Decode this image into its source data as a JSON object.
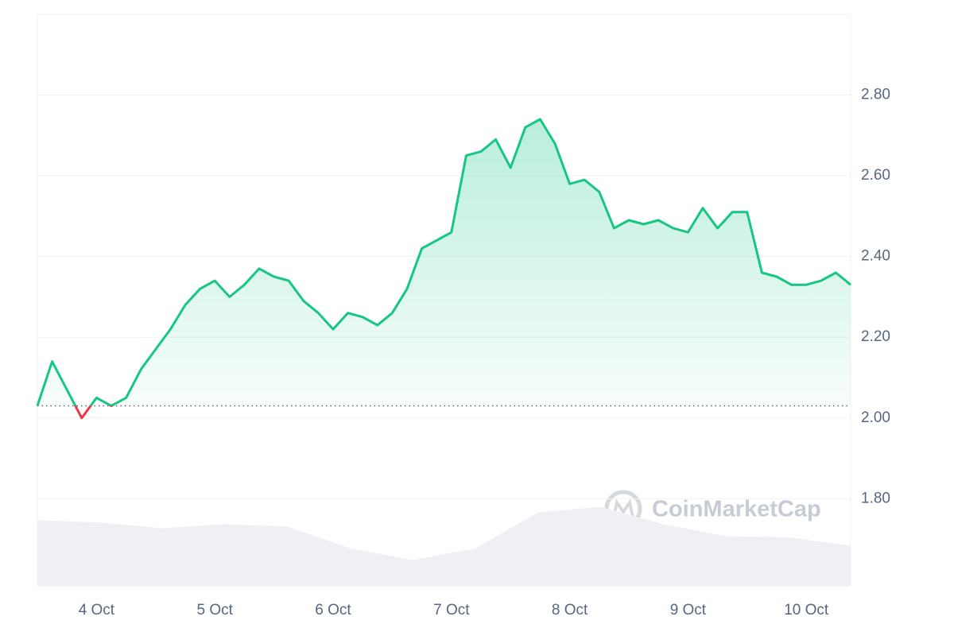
{
  "chart_data": {
    "type": "line",
    "categories": [
      null,
      null,
      null,
      null,
      "4 Oct",
      null,
      null,
      null,
      null,
      null,
      null,
      null,
      "5 Oct",
      null,
      null,
      null,
      null,
      null,
      null,
      null,
      "6 Oct",
      null,
      null,
      null,
      null,
      null,
      null,
      null,
      "7 Oct",
      null,
      null,
      null,
      null,
      null,
      null,
      null,
      "8 Oct",
      null,
      null,
      null,
      null,
      null,
      null,
      null,
      "9 Oct",
      null,
      null,
      null,
      null,
      null,
      null,
      null,
      "10 Oct",
      null,
      null,
      null
    ],
    "series": [
      {
        "values": [
          2.03,
          2.14,
          2.07,
          2.0,
          2.05,
          2.03,
          2.05,
          2.12,
          2.17,
          2.22,
          2.28,
          2.32,
          2.34,
          2.3,
          2.33,
          2.37,
          2.35,
          2.34,
          2.29,
          2.26,
          2.22,
          2.26,
          2.25,
          2.23,
          2.26,
          2.32,
          2.42,
          2.44,
          2.46,
          2.65,
          2.66,
          2.69,
          2.62,
          2.72,
          2.74,
          2.68,
          2.58,
          2.59,
          2.56,
          2.47,
          2.49,
          2.48,
          2.49,
          2.47,
          2.46,
          2.52,
          2.47,
          2.51,
          2.51,
          2.36,
          2.35,
          2.33,
          2.33,
          2.34,
          2.36,
          2.33
        ],
        "color": "#16c784",
        "down_color": "#ea3943"
      }
    ],
    "baseline": 2.03,
    "volume": {
      "values": [
        1.747,
        1.741,
        1.727,
        1.737,
        1.731,
        1.677,
        1.648,
        1.677,
        1.766,
        1.78,
        1.737,
        1.707,
        1.705,
        1.683
      ],
      "color": "#eef0f4"
    },
    "ylim": [
      1.584,
      3.0
    ],
    "yticks": [
      {
        "value": 1.8,
        "label": "1.80"
      },
      {
        "value": 2.0,
        "label": "2.00"
      },
      {
        "value": 2.2,
        "label": "2.20"
      },
      {
        "value": 2.4,
        "label": "2.40"
      },
      {
        "value": 2.6,
        "label": "2.60"
      },
      {
        "value": 2.8,
        "label": "2.80"
      }
    ],
    "grid": true,
    "watermark": "CoinMarketCap"
  }
}
